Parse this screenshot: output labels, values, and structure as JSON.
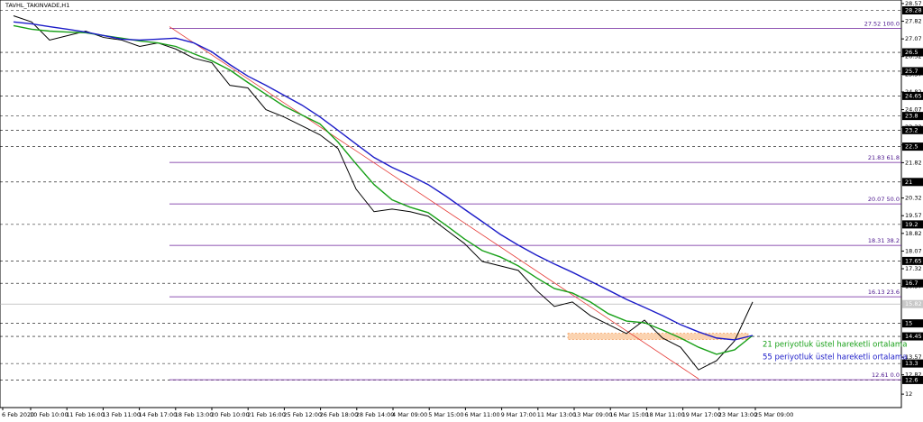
{
  "chart_data": {
    "type": "line",
    "title": "TAVHL_TAKINVADE,H1",
    "ylim": [
      11.43,
      28.72
    ],
    "yticks": [
      28.57,
      27.82,
      27.07,
      26.32,
      25.57,
      24.82,
      24.07,
      23.32,
      22.57,
      21.82,
      20.32,
      19.57,
      18.82,
      18.07,
      17.32,
      16.57,
      13.57,
      12.82,
      12.0
    ],
    "x_labels": [
      "6 Feb 2020",
      "10 Feb 10:00",
      "11 Feb 16:00",
      "13 Feb 11:00",
      "14 Feb 17:00",
      "18 Feb 13:00",
      "20 Feb 10:00",
      "21 Feb 16:00",
      "25 Feb 12:00",
      "26 Feb 18:00",
      "28 Feb 14:00",
      "4 Mar 09:00",
      "5 Mar 15:00",
      "6 Mar 11:00",
      "9 Mar 17:00",
      "11 Mar 13:00",
      "13 Mar 09:00",
      "16 Mar 15:00",
      "18 Mar 11:00",
      "19 Mar 17:00",
      "23 Mar 13:00",
      "25 Mar 09:00"
    ],
    "price": {
      "color": "#000000",
      "values": [
        28.05,
        27.79,
        27.02,
        27.21,
        27.4,
        27.13,
        27.02,
        26.75,
        26.9,
        26.64,
        26.25,
        26.06,
        25.1,
        24.99,
        24.07,
        23.76,
        23.38,
        23.0,
        22.42,
        20.7,
        19.74,
        19.85,
        19.74,
        19.55,
        18.97,
        18.4,
        17.63,
        17.44,
        17.25,
        16.41,
        15.72,
        15.91,
        15.33,
        14.95,
        14.57,
        15.14,
        14.38,
        13.99,
        13.03,
        13.42,
        14.26,
        15.91
      ]
    },
    "series": [
      {
        "name": "21 periyotluk üstel hareketli ortalama",
        "color": "#18a018",
        "values": [
          27.63,
          27.48,
          27.4,
          27.36,
          27.33,
          27.21,
          27.1,
          26.98,
          26.9,
          26.75,
          26.44,
          26.14,
          25.75,
          25.22,
          24.72,
          24.22,
          23.84,
          23.46,
          22.69,
          21.77,
          20.89,
          20.24,
          19.93,
          19.7,
          19.16,
          18.59,
          18.09,
          17.82,
          17.44,
          16.94,
          16.48,
          16.29,
          15.91,
          15.41,
          15.1,
          15.03,
          14.72,
          14.38,
          13.99,
          13.69,
          13.88,
          14.49
        ]
      },
      {
        "name": "55 periyotluk üstel hareketli ortalama",
        "color": "#1c1cc8",
        "values": [
          27.79,
          27.71,
          27.59,
          27.48,
          27.36,
          27.21,
          27.06,
          27.02,
          27.06,
          27.1,
          26.9,
          26.52,
          25.98,
          25.49,
          25.1,
          24.68,
          24.26,
          23.76,
          23.19,
          22.61,
          22.04,
          21.62,
          21.27,
          20.89,
          20.39,
          19.85,
          19.32,
          18.78,
          18.32,
          17.9,
          17.52,
          17.17,
          16.79,
          16.41,
          16.02,
          15.68,
          15.33,
          14.95,
          14.64,
          14.38,
          14.3,
          14.49
        ]
      }
    ],
    "levels": [
      28.28,
      26.5,
      25.7,
      24.65,
      23.8,
      23.2,
      22.5,
      21.0,
      19.2,
      17.65,
      16.7,
      15.0,
      14.45,
      13.3,
      12.6
    ],
    "fibonacci": [
      {
        "value": 27.52,
        "label": "27.52 100.0"
      },
      {
        "value": 21.83,
        "label": "21.83 61.8"
      },
      {
        "value": 20.07,
        "label": "20.07 50.0"
      },
      {
        "value": 18.31,
        "label": "18.31 38.2"
      },
      {
        "value": 16.13,
        "label": "16.13 23.6"
      },
      {
        "value": 12.61,
        "label": "12.61 0.0"
      }
    ],
    "current_price": 15.82,
    "trendline": [
      27.59,
      12.65
    ],
    "zone": [
      14.32,
      14.58
    ]
  }
}
